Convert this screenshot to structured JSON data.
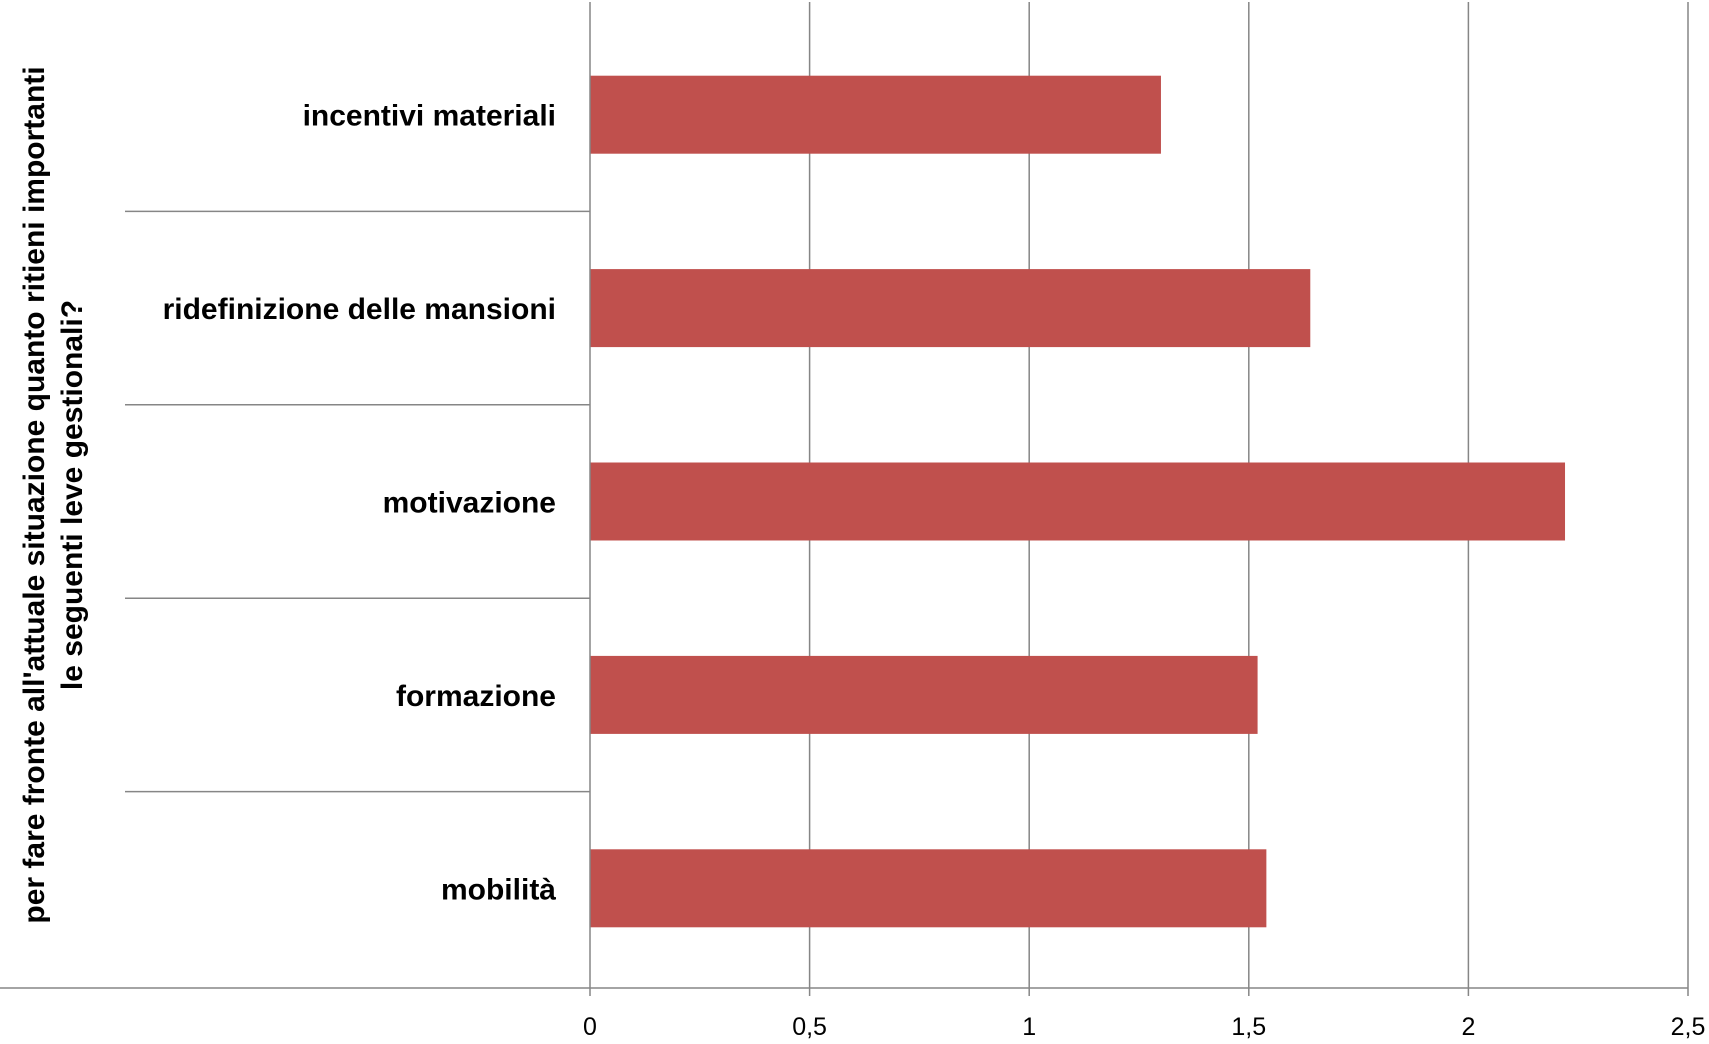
{
  "chart_data": {
    "type": "bar",
    "orientation": "horizontal",
    "categories": [
      "incentivi materiali",
      "ridefinizione delle mansioni",
      "motivazione",
      "formazione",
      "mobilità"
    ],
    "values": [
      1.3,
      1.64,
      2.22,
      1.52,
      1.54
    ],
    "ylabel_lines": [
      "per fare fronte all'attuale situazione quanto ritieni importanti",
      "le seguenti leve gestionali?"
    ],
    "xlabel": "",
    "xlim": [
      0,
      2.5
    ],
    "x_ticks": [
      0,
      0.5,
      1,
      1.5,
      2,
      2.5
    ],
    "x_tick_labels": [
      "0",
      "0,5",
      "1",
      "1,5",
      "2",
      "2,5"
    ],
    "grid": "vertical",
    "legend": "none",
    "bar_color": "#c0504d",
    "grid_color": "#868686"
  }
}
